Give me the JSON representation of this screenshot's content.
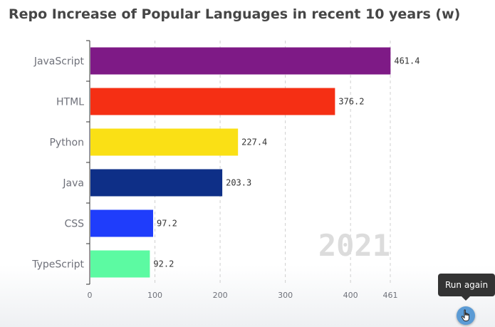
{
  "chart_data": {
    "type": "bar",
    "orientation": "horizontal",
    "title": "Repo Increase of Popular Languages in recent 10 years (w)",
    "categories": [
      "JavaScript",
      "HTML",
      "Python",
      "Java",
      "CSS",
      "TypeScript"
    ],
    "values": [
      461.4,
      376.2,
      227.4,
      203.3,
      97.2,
      92.2
    ],
    "value_labels": [
      "461.4",
      "376.2",
      "227.4",
      "203.3",
      "97.2",
      "92.2"
    ],
    "colors": [
      "#7e1a86",
      "#f52f14",
      "#fae015",
      "#0e2f87",
      "#1f3dfb",
      "#5cfaa2"
    ],
    "x_ticks": [
      "0",
      "100",
      "200",
      "300",
      "400",
      "461"
    ],
    "x_tick_values": [
      0,
      100,
      200,
      300,
      400,
      461
    ],
    "xlim": [
      0,
      461
    ],
    "year": "2021",
    "grid": "vertical-dashed",
    "legend": "none"
  },
  "ui": {
    "tooltip_text": "Run again",
    "run_button_icon": "hand-cursor-icon"
  }
}
